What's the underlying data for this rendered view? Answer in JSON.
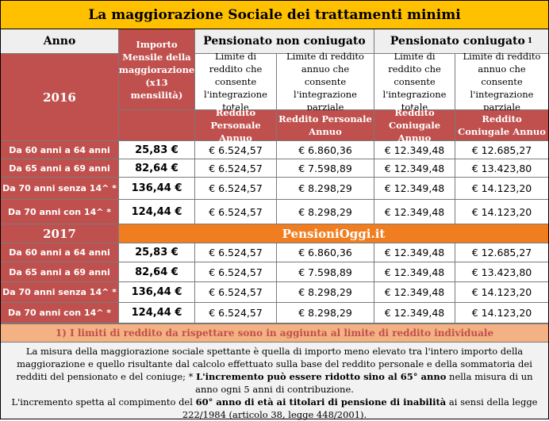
{
  "title": "La maggiorazione Sociale dei trattamenti minimi",
  "headers": {
    "anno": "Anno",
    "importo": "Importo Mensile della maggiorazione (x13 mensilità)",
    "non_coniugato": "Pensionato non coniugato",
    "coniugato": "Pensionato coniugato",
    "coniugato_sup": "1",
    "limite_totale": "Limite di reddito che consente l'integrazione totale",
    "limite_parziale": "Limite di reddito annuo che consente l'integrazione parziale",
    "reddito_personale": "Reddito Personale Annuo",
    "reddito_coniugale": "Reddito Coniugale Annuo"
  },
  "year_2016": "2016",
  "year_2017": "2017",
  "brand": "PensioniOggi.it",
  "rows_2016": [
    {
      "label": "Da 60 anni a 64 anni",
      "importo": "25,83 €",
      "c1": "€ 6.524,57",
      "c2": "€ 6.860,36",
      "c3": "€ 12.349,48",
      "c4": "€ 12.685,27"
    },
    {
      "label": "Da 65 anni a 69 anni",
      "importo": "82,64 €",
      "c1": "€ 6.524,57",
      "c2": "€ 7.598,89",
      "c3": "€ 12.349,48",
      "c4": "€ 13.423,80"
    },
    {
      "label": "Da 70 anni senza 14^ *",
      "importo": "136,44 €",
      "c1": "€ 6.524,57",
      "c2": "€ 8.298,29",
      "c3": "€ 12.349,48",
      "c4": "€ 14.123,20"
    },
    {
      "label": "Da 70 anni con 14^ *",
      "importo": "124,44 €",
      "c1": "€ 6.524,57",
      "c2": "€ 8.298,29",
      "c3": "€ 12.349,48",
      "c4": "€ 14.123,20"
    }
  ],
  "rows_2017": [
    {
      "label": "Da 60 anni a 64 anni",
      "importo": "25,83 €",
      "c1": "€ 6.524,57",
      "c2": "€ 6.860,36",
      "c3": "€ 12.349,48",
      "c4": "€ 12.685,27"
    },
    {
      "label": "Da 65 anni a 69 anni",
      "importo": "82,64 €",
      "c1": "€ 6.524,57",
      "c2": "€ 7.598,89",
      "c3": "€ 12.349,48",
      "c4": "€ 13.423,80"
    },
    {
      "label": "Da 70 anni senza 14^ *",
      "importo": "136,44 €",
      "c1": "€ 6.524,57",
      "c2": "€ 8.298,29",
      "c3": "€ 12.349,48",
      "c4": "€ 14.123,20"
    },
    {
      "label": "Da 70 anni con 14^ *",
      "importo": "124,44 €",
      "c1": "€ 6.524,57",
      "c2": "€ 8.298,29",
      "c3": "€ 12.349,48",
      "c4": "€ 14.123,20"
    }
  ],
  "footnote_bar": "1) I limiti di reddito da rispettare sono in aggiunta al limite di reddito individuale",
  "notes": {
    "p1": "La misura della maggiorazione sociale spettante è quella di importo meno elevato tra l'intero importo della  maggiorazione e quello risultante dal calcolo effettuato sulla base del reddito personale e della sommatoria dei redditi del pensionato e del coniuge; * ",
    "p1_bold": "L'incremento può essere ridotto sino al 65° anno",
    "p1_tail": " nella misura di un anno ogni 5 anni di contribuzione.",
    "p2_start": "L'incremento spetta al compimento del ",
    "p2_bold": "60° anno di età ai titolari di pensione di inabilità",
    "p2_tail": " ai sensi della legge 222/1984 (articolo 38, legge 448/2001)."
  }
}
